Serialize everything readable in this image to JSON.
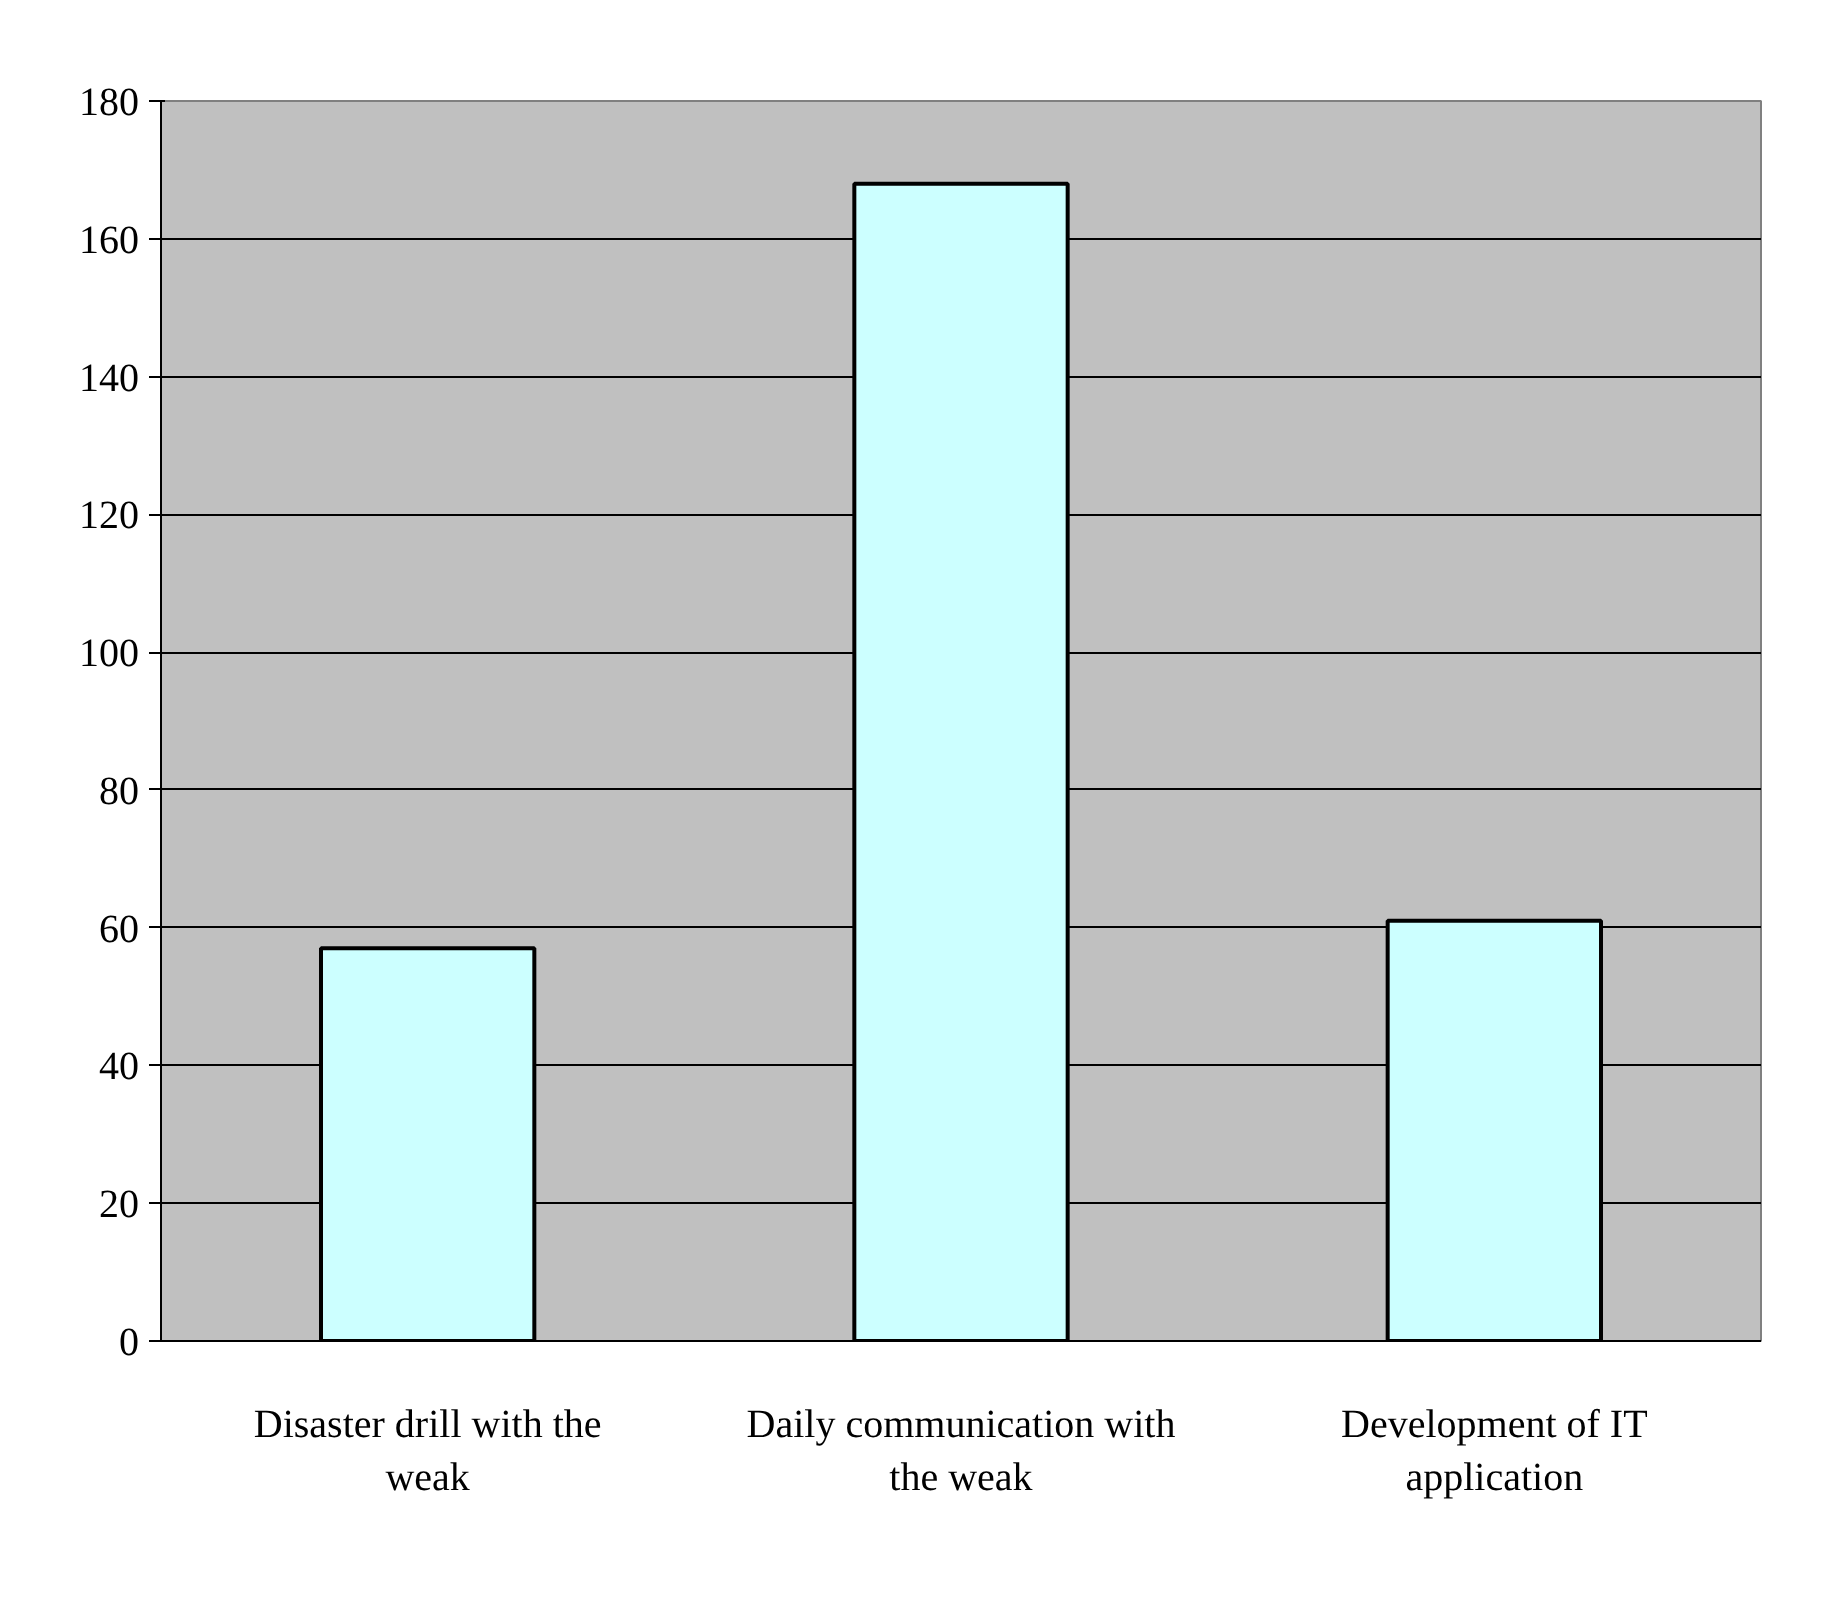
{
  "chart_data": {
    "type": "bar",
    "categories": [
      "Disaster drill with the weak",
      "Daily communication with the weak",
      "Development of IT application"
    ],
    "values": [
      57,
      168,
      61
    ],
    "color": "#ccffff",
    "ylim": [
      0,
      180
    ],
    "yticks": [
      0,
      20,
      40,
      60,
      80,
      100,
      120,
      140,
      160,
      180
    ],
    "grid": "y"
  }
}
